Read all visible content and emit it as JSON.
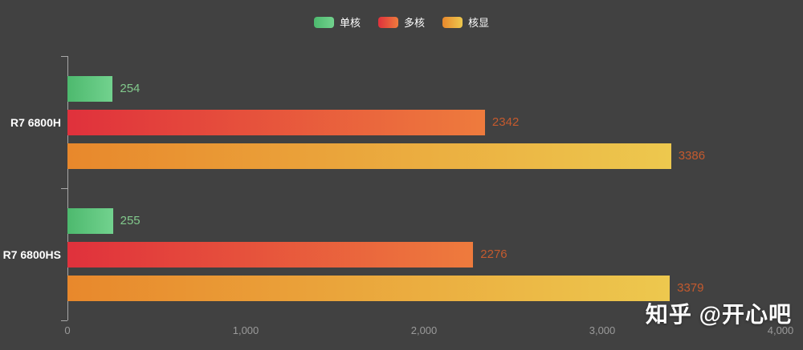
{
  "legend": {
    "items": [
      "单核",
      "多核",
      "核显"
    ]
  },
  "watermark": {
    "text": "知乎 @开心吧"
  },
  "chart_data": {
    "type": "bar",
    "orientation": "horizontal",
    "title": "",
    "xlabel": "",
    "ylabel": "",
    "categories": [
      "R7 6800H",
      "R7 6800HS"
    ],
    "series": [
      {
        "name": "单核",
        "values": [
          254,
          255
        ],
        "color_from": "#4db96e",
        "color_to": "#72d28e",
        "label_color": "#82c98c"
      },
      {
        "name": "多核",
        "values": [
          2342,
          2276
        ],
        "color_from": "#e0313c",
        "color_to": "#ee7b3d",
        "label_color": "#c45a2e"
      },
      {
        "name": "核显",
        "values": [
          3386,
          3379
        ],
        "color_from": "#e8882c",
        "color_to": "#edc84e",
        "label_color": "#c45a2e"
      }
    ],
    "xlim": [
      0,
      4000
    ],
    "x_ticks": [
      "0",
      "1,000",
      "2,000",
      "3,000",
      "4,000"
    ],
    "x_tick_values": [
      0,
      1000,
      2000,
      3000,
      4000
    ],
    "legend_position": "top-center",
    "grid": false,
    "background": "#414141"
  }
}
